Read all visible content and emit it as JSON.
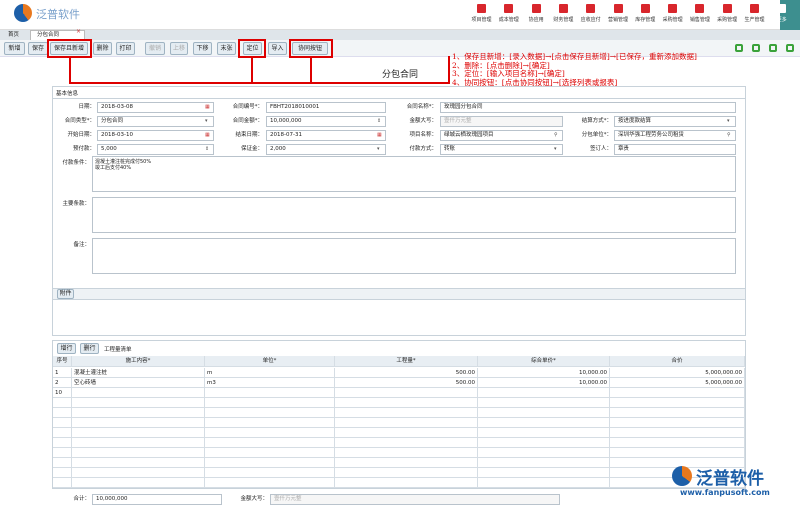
{
  "header": {
    "logo": "泛普软件",
    "nav": [
      "项目管理",
      "成本管理",
      "协应用",
      "财务管理",
      "应收应付",
      "营销管理",
      "库存管理",
      "采购管理",
      "销售管理",
      "采购管理",
      "生产管理",
      "更多"
    ]
  },
  "tabs": [
    "首页",
    "分包合同"
  ],
  "toolbar": [
    "新增",
    "保存",
    "保存且新增",
    "删除",
    "打印",
    "撤销",
    "上移",
    "下移",
    "末张",
    "定位",
    "导入",
    "协同按钮"
  ],
  "annotations": [
    "1、保存且新增：[录入数据]→[点击保存且新增]→[已保存，重新添加数据]",
    "2、删除：[点击删除]→[确定]",
    "3、定位：[输入项目名称]→[确定]",
    "4、协同按钮：[点击协同按钮]→[选择列表或报表]"
  ],
  "form": {
    "title": "分包合同",
    "section": "基本信息",
    "fields": [
      [
        {
          "label": "日期：",
          "value": "2018-03-08"
        },
        {
          "label": "合同编号*：",
          "value": "FBHT2018010001"
        },
        {
          "label": "合同名称*：",
          "value": "玫瑰园分包合同"
        }
      ],
      [
        {
          "label": "合同类型*：",
          "value": "分包合同"
        },
        {
          "label": "合同金额*：",
          "value": "10,000,000"
        },
        {
          "label": "金额大写：",
          "value": "壹仟万元整"
        },
        {
          "label": "结算方式*：",
          "value": "按进度款结算"
        }
      ],
      [
        {
          "label": "开始日期：",
          "value": "2018-03-10"
        },
        {
          "label": "结束日期：",
          "value": "2018-07-31"
        },
        {
          "label": "项目名称：",
          "value": "绿城云栖玫瑰园项目"
        },
        {
          "label": "分包单位*：",
          "value": "深圳华强工程劳务公司租赁"
        }
      ],
      [
        {
          "label": "预付款：",
          "value": "5,000"
        },
        {
          "label": "保证金：",
          "value": "2,000"
        },
        {
          "label": "付款方式：",
          "value": "转账"
        },
        {
          "label": "签订人：",
          "value": "章贵"
        }
      ]
    ],
    "textareas": [
      {
        "label": "付款条件：",
        "value": [
          "混凝土灌注桩完成付50%",
          "竣工后支付40%"
        ]
      },
      {
        "label": "主要条款："
      },
      {
        "label": "备注："
      }
    ],
    "attachment": "附件"
  },
  "detail": {
    "buttons": [
      "增行",
      "删行"
    ],
    "tab": "工程量清单",
    "columns": [
      "序号",
      "施工内容*",
      "单位*",
      "工程量*",
      "综合单价*",
      "合价"
    ],
    "rows": [
      [
        "1",
        "混凝土灌注桩",
        "m",
        "500.00",
        "10,000.00",
        "5,000,000.00"
      ],
      [
        "2",
        "空心砖墙",
        "m3",
        "500.00",
        "10,000.00",
        "5,000,000.00"
      ],
      [
        "10"
      ]
    ]
  },
  "footer": {
    "total_label": "合计：",
    "total": "10,000,000",
    "upper_label": "金额大写：",
    "upper": "壹仟万元整"
  },
  "watermark": {
    "brand": "泛普软件",
    "url": "www.fanpusoft.com"
  }
}
